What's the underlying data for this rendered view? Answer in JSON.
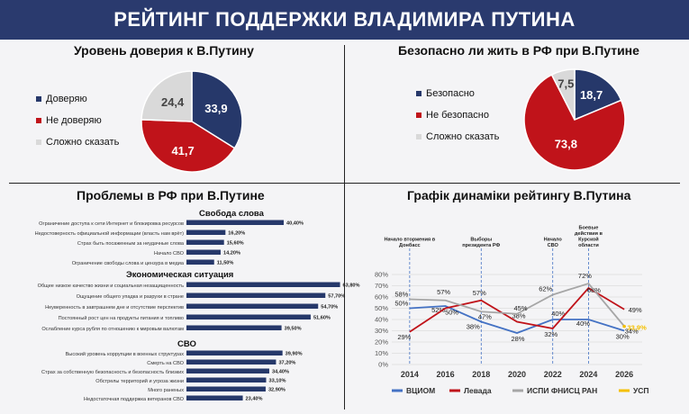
{
  "header": {
    "title": "РЕЙТИНГ ПОДДЕРЖКИ ВЛАДИМИРА ПУТИНА"
  },
  "colors": {
    "navy": "#26386a",
    "red": "#c0131a",
    "grey": "#d9d9d9",
    "yellow": "#f5c000",
    "banner": "#2a3a6e"
  },
  "chart_data": [
    {
      "type": "pie",
      "title": "Уровень доверия к В.Путину",
      "slices": [
        {
          "label": "Доверяю",
          "value": 33.9,
          "display": "33,9",
          "color": "#26386a"
        },
        {
          "label": "Не доверяю",
          "value": 41.7,
          "display": "41,7",
          "color": "#c0131a"
        },
        {
          "label": "Сложно сказать",
          "value": 24.4,
          "display": "24,4",
          "color": "#d9d9d9"
        }
      ]
    },
    {
      "type": "pie",
      "title": "Безопасно ли жить в РФ при В.Путине",
      "slices": [
        {
          "label": "Безопасно",
          "value": 18.7,
          "display": "18,7",
          "color": "#26386a"
        },
        {
          "label": "Не безопасно",
          "value": 73.8,
          "display": "73,8",
          "color": "#c0131a"
        },
        {
          "label": "Сложно сказать",
          "value": 7.5,
          "display": "7,5",
          "color": "#d9d9d9"
        }
      ]
    },
    {
      "type": "bar",
      "title": "Проблемы в РФ при В.Путине",
      "xlim": [
        0,
        70
      ],
      "groups": [
        {
          "name": "Свобода слова",
          "items": [
            {
              "label": "Ограничение доступа к сети Интернет и блокировка ресурсов",
              "value": 40.4,
              "display": "40,40%"
            },
            {
              "label": "Недостоверность официальной информации (власть нам врёт)",
              "value": 16.2,
              "display": "16,20%"
            },
            {
              "label": "Страх быть посаженным за неудачные слова",
              "value": 15.6,
              "display": "15,60%"
            },
            {
              "label": "Начало СВО",
              "value": 14.2,
              "display": "14,20%"
            },
            {
              "label": "Ограничение свободы слова и цензура в медиа",
              "value": 11.5,
              "display": "11,50%"
            }
          ]
        },
        {
          "name": "Экономическая ситуация",
          "items": [
            {
              "label": "Общее низкое качество жизни и социальная незащищенность",
              "value": 63.8,
              "display": "63,80%"
            },
            {
              "label": "Ощущение общего упадка и разрухи в стране",
              "value": 57.7,
              "display": "57,70%"
            },
            {
              "label": "Неуверенность в завтрашнем дне и отсутствие перспектив",
              "value": 54.7,
              "display": "54,70%"
            },
            {
              "label": "Постоянный рост цен на продукты питания и топливо",
              "value": 51.6,
              "display": "51,60%"
            },
            {
              "label": "Ослабление курса рубля по отношению к мировым валютам",
              "value": 39.5,
              "display": "39,50%"
            }
          ]
        },
        {
          "name": "СВО",
          "items": [
            {
              "label": "Высокий уровень коррупции в военных структурах",
              "value": 39.9,
              "display": "39,90%"
            },
            {
              "label": "Смерть на СВО",
              "value": 37.2,
              "display": "37,20%"
            },
            {
              "label": "Страх за собственную безопасность и безопасность близких",
              "value": 34.4,
              "display": "34,40%"
            },
            {
              "label": "Обстрелы территорий и угроза жизни",
              "value": 33.1,
              "display": "33,10%"
            },
            {
              "label": "Много раненых",
              "value": 32.9,
              "display": "32,90%"
            },
            {
              "label": "Недостаточная поддержка ветеранов СВО",
              "value": 23.4,
              "display": "23,40%"
            }
          ]
        }
      ]
    },
    {
      "type": "line",
      "title": "Графік динаміки рейтингу В.Путина",
      "xlim": [
        2013,
        2027
      ],
      "ylim": [
        0,
        80
      ],
      "xticks": [
        2014,
        2016,
        2018,
        2020,
        2022,
        2024,
        2026
      ],
      "yticks": [
        0,
        10,
        20,
        30,
        40,
        50,
        60,
        70,
        80
      ],
      "ytick_labels": [
        "0%",
        "10%",
        "20%",
        "30%",
        "40%",
        "50%",
        "60%",
        "70%",
        "80%"
      ],
      "grid": true,
      "legend_position": "bottom",
      "events": [
        {
          "x": 2014,
          "label": [
            "Начало вторжения в",
            "Донбасс"
          ]
        },
        {
          "x": 2018,
          "label": [
            "Выборы",
            "президента РФ"
          ]
        },
        {
          "x": 2022,
          "label": [
            "Начало",
            "СВО"
          ]
        },
        {
          "x": 2024,
          "label": [
            "Боевые",
            "действия в",
            "Курской",
            "области"
          ]
        }
      ],
      "series": [
        {
          "name": "ВЦИОМ",
          "color": "#4472c4",
          "points": [
            {
              "x": 2014,
              "y": 50,
              "label": "50%"
            },
            {
              "x": 2016,
              "y": 52,
              "label": "52%"
            },
            {
              "x": 2018,
              "y": 38,
              "label": "38%"
            },
            {
              "x": 2020,
              "y": 28,
              "label": "28%"
            },
            {
              "x": 2022,
              "y": 40,
              "label": "40%"
            },
            {
              "x": 2024,
              "y": 40,
              "label": "40%"
            },
            {
              "x": 2026,
              "y": 30,
              "label": "30%"
            }
          ]
        },
        {
          "name": "Левада",
          "color": "#c0131a",
          "points": [
            {
              "x": 2014,
              "y": 29,
              "label": "29%"
            },
            {
              "x": 2016,
              "y": 50,
              "label": "50%"
            },
            {
              "x": 2018,
              "y": 57,
              "label": "57%"
            },
            {
              "x": 2020,
              "y": 38,
              "label": "38%"
            },
            {
              "x": 2022,
              "y": 32,
              "label": "32%"
            },
            {
              "x": 2024,
              "y": 68,
              "label": "68%"
            },
            {
              "x": 2026,
              "y": 49,
              "label": "49%"
            }
          ]
        },
        {
          "name": "ИСПИ ФНИСЦ РАН",
          "color": "#a6a6a6",
          "points": [
            {
              "x": 2014,
              "y": 58,
              "label": "58%"
            },
            {
              "x": 2016,
              "y": 57,
              "label": "57%"
            },
            {
              "x": 2018,
              "y": 47,
              "label": "47%"
            },
            {
              "x": 2020,
              "y": 45,
              "label": "45%"
            },
            {
              "x": 2022,
              "y": 62,
              "label": "62%"
            },
            {
              "x": 2024,
              "y": 72,
              "label": "72%"
            },
            {
              "x": 2026,
              "y": 34,
              "label": "34%"
            }
          ]
        },
        {
          "name": "УСП",
          "color": "#f5c000",
          "points": [
            {
              "x": 2026,
              "y": 33.9,
              "label": "33,9%"
            }
          ]
        }
      ]
    }
  ]
}
